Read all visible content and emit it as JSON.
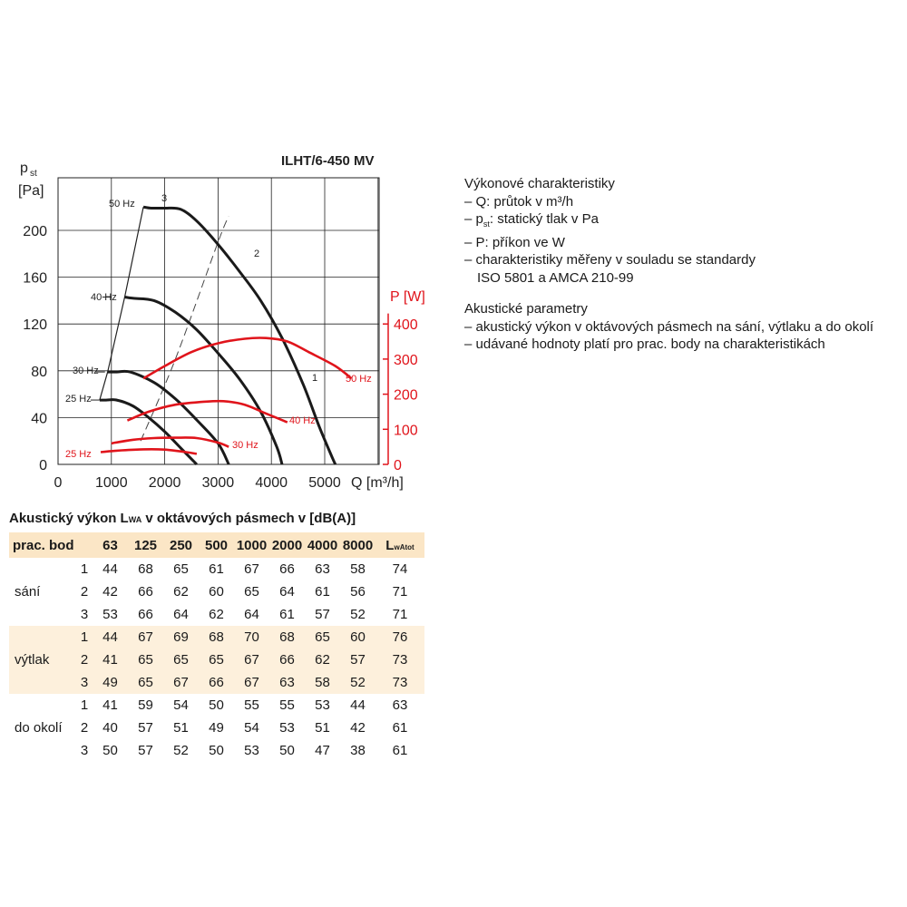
{
  "chart_data": {
    "type": "line",
    "title": "ILHT/6-450 MV",
    "xlabel": "Q [m³/h]",
    "ylabel_left_main": "p",
    "ylabel_left_sub": "st",
    "ylabel_left_unit": "[Pa]",
    "ylabel_right": "P [W]",
    "x_ticks": [
      "0",
      "1000",
      "2000",
      "3000",
      "4000",
      "5000"
    ],
    "y_left_ticks": [
      "0",
      "40",
      "80",
      "120",
      "160",
      "200"
    ],
    "y_right_ticks": [
      "0",
      "100",
      "200",
      "300",
      "400"
    ],
    "xlim": [
      0,
      6500
    ],
    "ylim_left": [
      0,
      240
    ],
    "ylim_right": [
      0,
      550
    ],
    "grid": true,
    "pressure_series": [
      {
        "name": "50 Hz",
        "x": [
          1600,
          1750,
          2000,
          2300,
          2600,
          3000,
          3400,
          3800,
          4200,
          4600,
          4900,
          5150,
          5200
        ],
        "y": [
          220,
          219,
          219,
          218,
          208,
          188,
          165,
          140,
          108,
          68,
          32,
          5,
          0
        ]
      },
      {
        "name": "40 Hz",
        "x": [
          1250,
          1400,
          1800,
          2200,
          2600,
          3000,
          3400,
          3800,
          4100,
          4200
        ],
        "y": [
          143,
          142,
          140,
          130,
          115,
          95,
          73,
          45,
          15,
          0
        ]
      },
      {
        "name": "30 Hz",
        "x": [
          930,
          1100,
          1350,
          1800,
          2200,
          2600,
          3000,
          3200
        ],
        "y": [
          79,
          79,
          79,
          70,
          56,
          38,
          18,
          0
        ]
      },
      {
        "name": "25 Hz",
        "x": [
          780,
          900,
          1100,
          1400,
          1700,
          2000,
          2300,
          2600
        ],
        "y": [
          55,
          55,
          55,
          50,
          40,
          28,
          14,
          0
        ]
      }
    ],
    "power_series": [
      {
        "name": "50 Hz",
        "x": [
          1600,
          2000,
          2500,
          3000,
          3500,
          3900,
          4300,
          4700,
          5200,
          5500
        ],
        "y": [
          245,
          280,
          320,
          345,
          358,
          360,
          350,
          320,
          280,
          245
        ]
      },
      {
        "name": "40 Hz",
        "x": [
          1300,
          1700,
          2200,
          2700,
          3100,
          3500,
          3900,
          4300
        ],
        "y": [
          125,
          150,
          170,
          178,
          180,
          170,
          145,
          120
        ]
      },
      {
        "name": "30 Hz",
        "x": [
          1000,
          1400,
          1800,
          2200,
          2600,
          3000,
          3200
        ],
        "y": [
          60,
          70,
          75,
          76,
          75,
          62,
          50
        ]
      },
      {
        "name": "25 Hz",
        "x": [
          800,
          1200,
          1600,
          2000,
          2400,
          2600
        ],
        "y": [
          35,
          40,
          43,
          42,
          35,
          30
        ]
      }
    ],
    "efficiency_line": {
      "x": [
        1550,
        2200,
        3000,
        3200
      ],
      "y": [
        20,
        90,
        190,
        212
      ],
      "dashed": true
    },
    "point_labels": [
      "1",
      "2",
      "3"
    ],
    "freq_labels": [
      "50 Hz",
      "40 Hz",
      "30 Hz",
      "25 Hz"
    ]
  },
  "info": {
    "perf_heading": "Výkonové charakteristiky",
    "perf_lines": [
      "– Q: průtok v m³/h",
      "– p",
      "st",
      ": statický tlak v Pa",
      "– P: příkon ve W",
      "– charakteristiky měřeny v souladu se standardy",
      "ISO 5801 a AMCA 210-99"
    ],
    "ac_heading": "Akustické parametry",
    "ac_lines": [
      "– akustický výkon v oktávových pásmech na sání, výtlaku a do okolí",
      "– udávané hodnoty platí pro prac. body na charakteristikách"
    ]
  },
  "table": {
    "title_pre": "Akustický výkon L",
    "title_sub": "WA",
    "title_post": " v oktávových pásmech v [dB(A)]",
    "header_first": "prac. bod",
    "header_bands": [
      "63",
      "125",
      "250",
      "500",
      "1000",
      "2000",
      "4000",
      "8000"
    ],
    "header_total_main": "L",
    "header_total_sub": "wAtot",
    "groups": [
      {
        "label": "sání",
        "rows": [
          {
            "point": "1",
            "values": [
              "44",
              "68",
              "65",
              "61",
              "67",
              "66",
              "63",
              "58"
            ],
            "total": "74"
          },
          {
            "point": "2",
            "values": [
              "42",
              "66",
              "62",
              "60",
              "65",
              "64",
              "61",
              "56"
            ],
            "total": "71"
          },
          {
            "point": "3",
            "values": [
              "53",
              "66",
              "64",
              "62",
              "64",
              "61",
              "57",
              "52"
            ],
            "total": "71"
          }
        ]
      },
      {
        "label": "výtlak",
        "rows": [
          {
            "point": "1",
            "values": [
              "44",
              "67",
              "69",
              "68",
              "70",
              "68",
              "65",
              "60"
            ],
            "total": "76"
          },
          {
            "point": "2",
            "values": [
              "41",
              "65",
              "65",
              "65",
              "67",
              "66",
              "62",
              "57"
            ],
            "total": "73"
          },
          {
            "point": "3",
            "values": [
              "49",
              "65",
              "67",
              "66",
              "67",
              "63",
              "58",
              "52"
            ],
            "total": "73"
          }
        ]
      },
      {
        "label": "do okolí",
        "rows": [
          {
            "point": "1",
            "values": [
              "41",
              "59",
              "54",
              "50",
              "55",
              "55",
              "53",
              "44"
            ],
            "total": "63"
          },
          {
            "point": "2",
            "values": [
              "40",
              "57",
              "51",
              "49",
              "54",
              "53",
              "51",
              "42"
            ],
            "total": "61"
          },
          {
            "point": "3",
            "values": [
              "50",
              "57",
              "52",
              "50",
              "53",
              "50",
              "47",
              "38"
            ],
            "total": "61"
          }
        ]
      }
    ]
  },
  "colors": {
    "pressure": "#1a1a1a",
    "power": "#e0141b",
    "header_bg": "#fbe6c6",
    "row_shade": "#fdf0dc"
  }
}
